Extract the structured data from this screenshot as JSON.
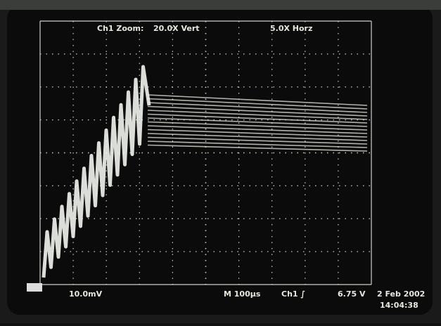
{
  "screen": {
    "zoom_label": "Ch1 Zoom:",
    "vert_zoom": "20.0X Vert",
    "horz_zoom": "5.0X Horz",
    "ch_scale": "10.0mV",
    "timebase": "M 100µs",
    "trigger": "Ch1 ∫",
    "trigger_level": "6.75 V",
    "date": "2 Feb 2002",
    "time": "14:04:38"
  }
}
